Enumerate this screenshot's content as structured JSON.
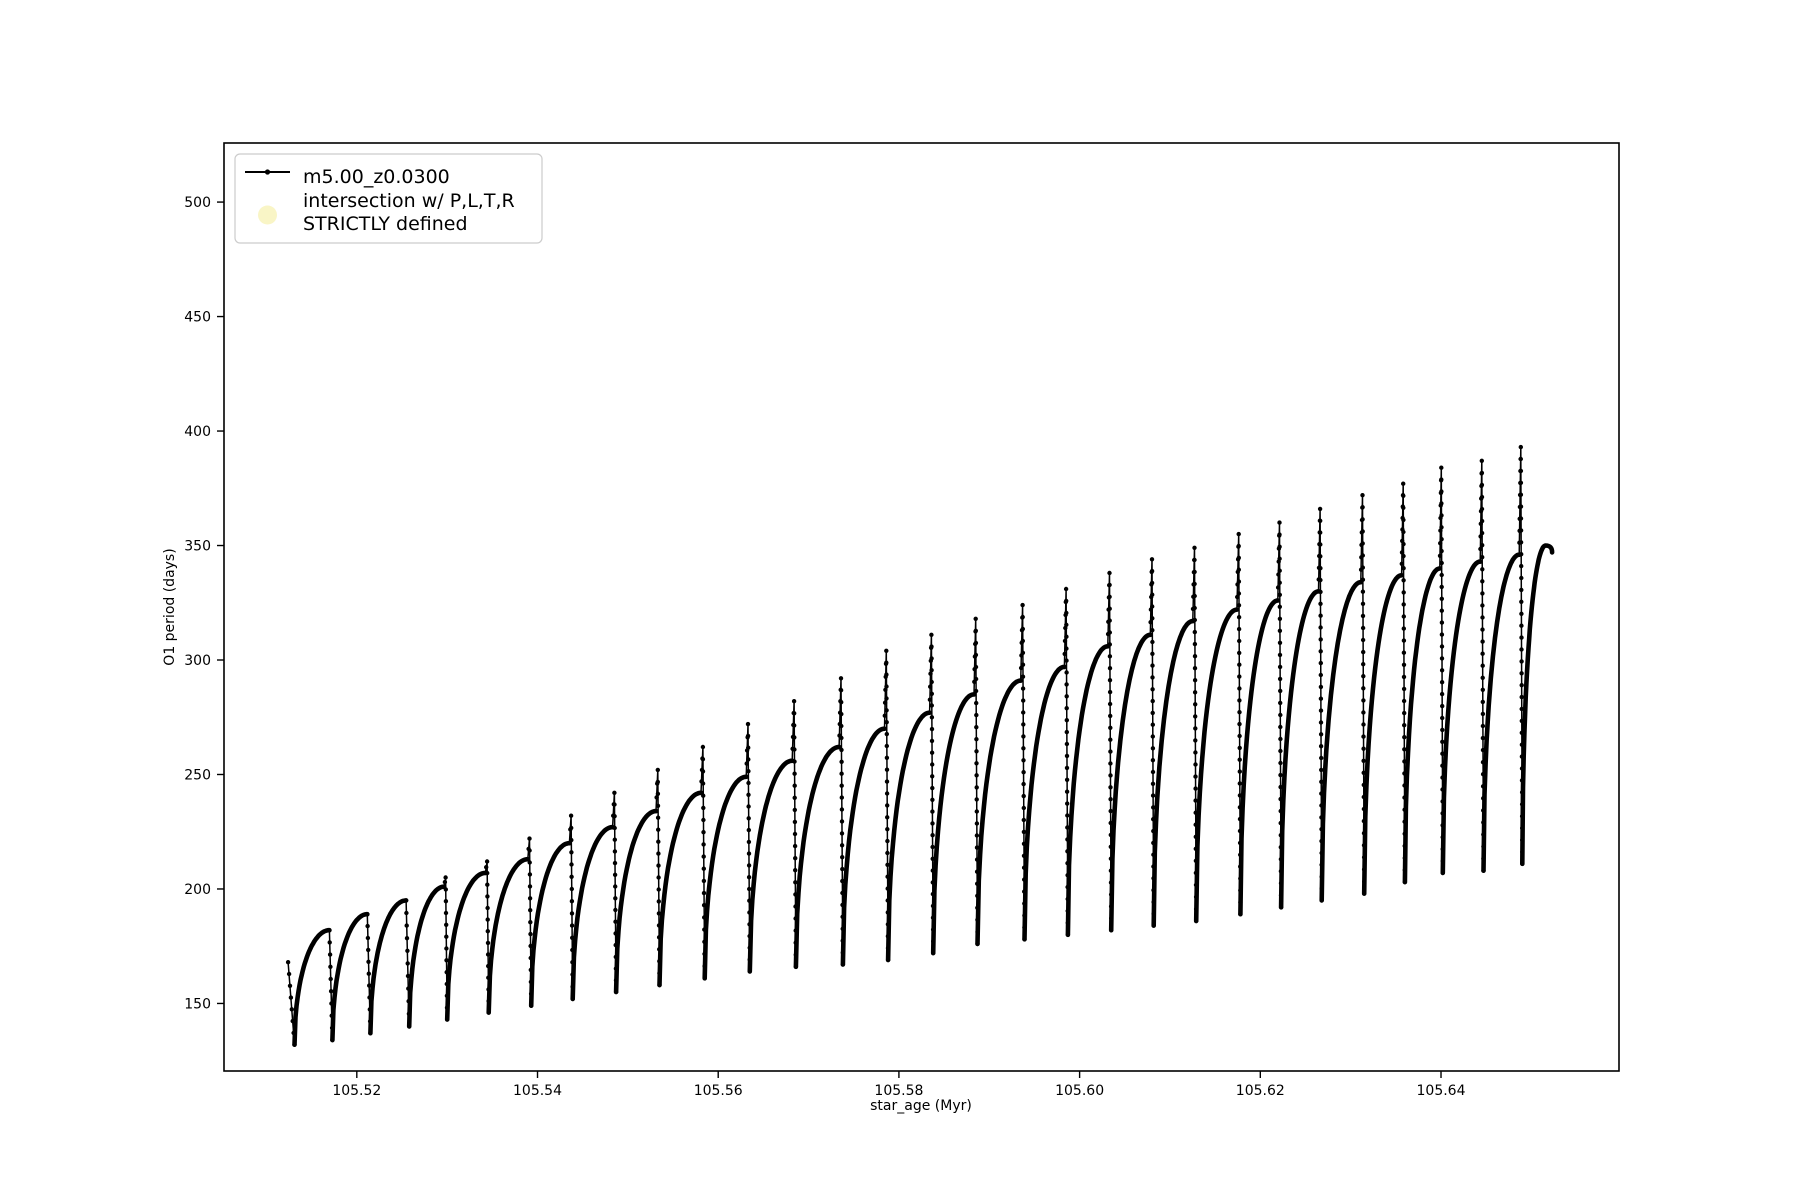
{
  "figure": {
    "background": "#ffffff",
    "line_color": "#000000",
    "intersection_marker_color": "#f9f5c6",
    "legend_border_color": "#cccccc"
  },
  "axes": {
    "xlabel": "star_age (Myr)",
    "ylabel": "O1 period (days)",
    "xlim": [
      105.5053,
      105.6597
    ],
    "ylim": [
      120.5,
      525.8
    ],
    "x_ticks": [
      {
        "value": 105.52,
        "label": "105.52"
      },
      {
        "value": 105.54,
        "label": "105.54"
      },
      {
        "value": 105.56,
        "label": "105.56"
      },
      {
        "value": 105.58,
        "label": "105.58"
      },
      {
        "value": 105.6,
        "label": "105.60"
      },
      {
        "value": 105.62,
        "label": "105.62"
      },
      {
        "value": 105.64,
        "label": "105.64"
      }
    ],
    "y_ticks": [
      {
        "value": 150,
        "label": "150"
      },
      {
        "value": 200,
        "label": "200"
      },
      {
        "value": 250,
        "label": "250"
      },
      {
        "value": 300,
        "label": "300"
      },
      {
        "value": 350,
        "label": "350"
      },
      {
        "value": 400,
        "label": "400"
      },
      {
        "value": 450,
        "label": "450"
      },
      {
        "value": 500,
        "label": "500"
      }
    ]
  },
  "legend": {
    "entries": [
      {
        "label": "m5.00_z0.0300",
        "marker": "line-with-dot",
        "color": "#000000"
      },
      {
        "label_line1": "intersection w/ P,L,T,R",
        "label_line2": "STRICTLY defined",
        "marker": "circle",
        "color": "#f9f5c6"
      }
    ]
  },
  "chart_data": {
    "type": "line",
    "title": "",
    "xlabel": "star_age (Myr)",
    "ylabel": "O1 period (days)",
    "xlim": [
      105.5053,
      105.6597
    ],
    "ylim": [
      120.5,
      525.8
    ],
    "grid": false,
    "legend_position": "upper left",
    "series": [
      {
        "name": "m5.00_z0.0300",
        "color": "#000000",
        "description": "Oscillation cycles: each cycle starts at a dip minimum, rises steeply into a rounded arc top, emits a narrow upward spike, then crashes down to the next dip. First three cycles have no spike; final cycle ends with a small downward hook.",
        "start_point": {
          "x": 105.5124,
          "y": 168
        },
        "end_point": {
          "x": 105.6523,
          "y": 347
        },
        "cycles": [
          {
            "start": 105.5131,
            "min": 132,
            "top": 182,
            "spike": null
          },
          {
            "start": 105.5173,
            "min": 134,
            "top": 189,
            "spike": null
          },
          {
            "start": 105.5215,
            "min": 137,
            "top": 195,
            "spike": null
          },
          {
            "start": 105.5258,
            "min": 140,
            "top": 201,
            "spike": 205
          },
          {
            "start": 105.53,
            "min": 143,
            "top": 207,
            "spike": 212
          },
          {
            "start": 105.5346,
            "min": 146,
            "top": 213,
            "spike": 222
          },
          {
            "start": 105.5393,
            "min": 149,
            "top": 220,
            "spike": 232
          },
          {
            "start": 105.5439,
            "min": 152,
            "top": 227,
            "spike": 242
          },
          {
            "start": 105.5487,
            "min": 155,
            "top": 234,
            "spike": 252
          },
          {
            "start": 105.5535,
            "min": 158,
            "top": 242,
            "spike": 262
          },
          {
            "start": 105.5585,
            "min": 161,
            "top": 249,
            "spike": 272
          },
          {
            "start": 105.5635,
            "min": 164,
            "top": 256,
            "spike": 282
          },
          {
            "start": 105.5686,
            "min": 166,
            "top": 262,
            "spike": 292
          },
          {
            "start": 105.5738,
            "min": 167,
            "top": 270,
            "spike": 304
          },
          {
            "start": 105.5788,
            "min": 169,
            "top": 277,
            "spike": 311
          },
          {
            "start": 105.5838,
            "min": 172,
            "top": 285,
            "spike": 318
          },
          {
            "start": 105.5887,
            "min": 176,
            "top": 291,
            "spike": 324
          },
          {
            "start": 105.5939,
            "min": 178,
            "top": 297,
            "spike": 331
          },
          {
            "start": 105.5987,
            "min": 180,
            "top": 306,
            "spike": 338
          },
          {
            "start": 105.6035,
            "min": 182,
            "top": 311,
            "spike": 344
          },
          {
            "start": 105.6082,
            "min": 184,
            "top": 317,
            "spike": 349
          },
          {
            "start": 105.6129,
            "min": 186,
            "top": 322,
            "spike": 355
          },
          {
            "start": 105.6178,
            "min": 189,
            "top": 326,
            "spike": 360
          },
          {
            "start": 105.6223,
            "min": 192,
            "top": 330,
            "spike": 366
          },
          {
            "start": 105.6268,
            "min": 195,
            "top": 334,
            "spike": 372
          },
          {
            "start": 105.6315,
            "min": 198,
            "top": 337,
            "spike": 377
          },
          {
            "start": 105.636,
            "min": 203,
            "top": 340,
            "spike": 384
          },
          {
            "start": 105.6402,
            "min": 207,
            "top": 343,
            "spike": 387
          },
          {
            "start": 105.6447,
            "min": 208,
            "top": 346,
            "spike": 393
          },
          {
            "start": 105.649,
            "min": 211,
            "top": 350,
            "spike": null
          }
        ]
      },
      {
        "name": "intersection w/ P,L,T,R STRICTLY defined",
        "marker": "circle",
        "color": "#f9f5c6",
        "points": []
      }
    ]
  }
}
